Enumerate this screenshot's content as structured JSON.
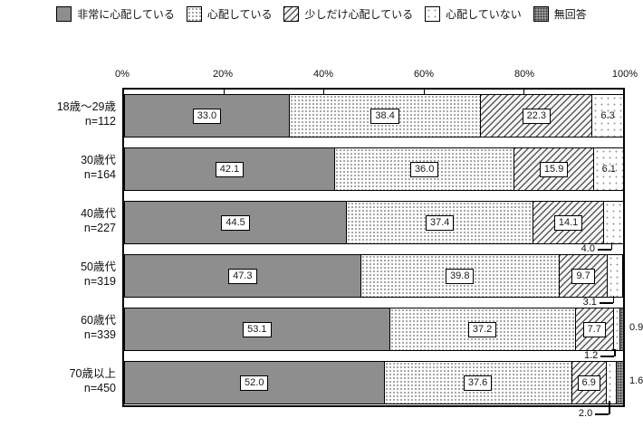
{
  "legend": {
    "items": [
      {
        "label": "非常に心配している",
        "pattern": "solid-gray"
      },
      {
        "label": "心配している",
        "pattern": "dots-fine"
      },
      {
        "label": "少しだけ心配している",
        "pattern": "hatch-diagonal"
      },
      {
        "label": "心配していない",
        "pattern": "dots-sparse"
      },
      {
        "label": "無回答",
        "pattern": "dark-check"
      }
    ]
  },
  "axis": {
    "ticks": [
      "0%",
      "20%",
      "40%",
      "60%",
      "80%",
      "100%"
    ]
  },
  "colors": {
    "solid_gray": "#8e8e8e",
    "border": "#000000",
    "background": "#ffffff"
  },
  "chart_data": {
    "type": "bar",
    "stacked": true,
    "orientation": "horizontal",
    "title": "",
    "xlabel": "",
    "ylabel": "",
    "xlim": [
      0,
      100
    ],
    "x_ticks": [
      "0%",
      "20%",
      "40%",
      "60%",
      "80%",
      "100%"
    ],
    "grid": false,
    "legend_position": "top",
    "categories": [
      "18歳〜29歳",
      "30歳代",
      "40歳代",
      "50歳代",
      "60歳代",
      "70歳以上"
    ],
    "sample_sizes": [
      "n=112",
      "n=164",
      "n=227",
      "n=319",
      "n=339",
      "n=450"
    ],
    "series": [
      {
        "name": "非常に心配している",
        "pattern": "solid-gray",
        "values": [
          33.0,
          42.1,
          44.5,
          47.3,
          53.1,
          52.0
        ]
      },
      {
        "name": "心配している",
        "pattern": "dots-fine",
        "values": [
          38.4,
          36.0,
          37.4,
          39.8,
          37.2,
          37.6
        ]
      },
      {
        "name": "少しだけ心配している",
        "pattern": "hatch-diagonal",
        "values": [
          22.3,
          15.9,
          14.1,
          9.7,
          7.7,
          6.9
        ]
      },
      {
        "name": "心配していない",
        "pattern": "dots-sparse",
        "values": [
          6.3,
          6.1,
          4.0,
          3.1,
          1.2,
          2.0
        ]
      },
      {
        "name": "無回答",
        "pattern": "dark-check",
        "values": [
          0,
          0,
          0,
          0,
          0.9,
          1.6
        ]
      }
    ],
    "callout_annotations": {
      "below_bar": [
        {
          "category": "40歳代",
          "series": "心配していない",
          "value": 4.0
        },
        {
          "category": "50歳代",
          "series": "心配していない",
          "value": 3.1
        },
        {
          "category": "60歳代",
          "series": "心配していない",
          "value": 1.2
        },
        {
          "category": "70歳以上",
          "series": "心配していない",
          "value": 2.0
        }
      ],
      "right_of_bar": [
        {
          "category": "60歳代",
          "series": "無回答",
          "value": 0.9
        },
        {
          "category": "70歳以上",
          "series": "無回答",
          "value": 1.6
        }
      ]
    }
  }
}
